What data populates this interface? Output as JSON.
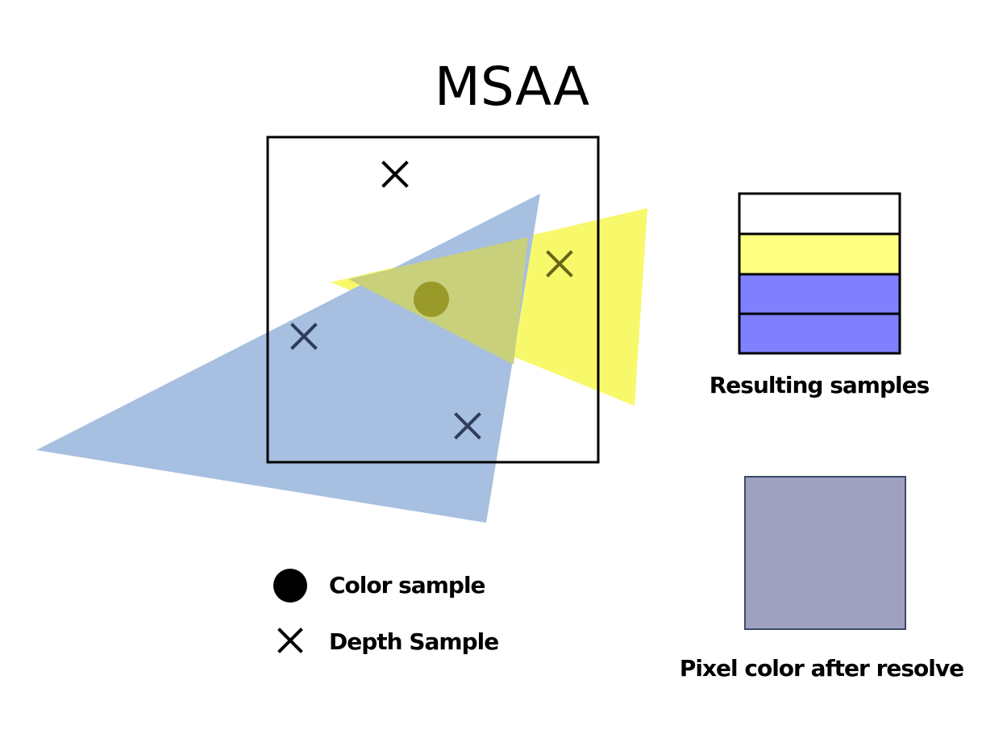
{
  "title": "MSAA",
  "legend": {
    "color_sample_label": "Color sample",
    "depth_sample_label": "Depth Sample"
  },
  "resulting_samples": {
    "label": "Resulting samples",
    "samples": [
      "#ffffff",
      "#ffff80",
      "#8080ff",
      "#8080ff"
    ]
  },
  "resolve": {
    "label": "Pixel color after resolve",
    "color": "#a0a0c0"
  },
  "colors": {
    "blue_triangle": "#a7bfe0",
    "yellow_triangle": "#f7f75e",
    "overlap": "#c9d07c",
    "color_sample_dot": "#9a9a2a",
    "depth_mark_dark": "#2e3d5a",
    "depth_mark_olive": "#666618"
  }
}
